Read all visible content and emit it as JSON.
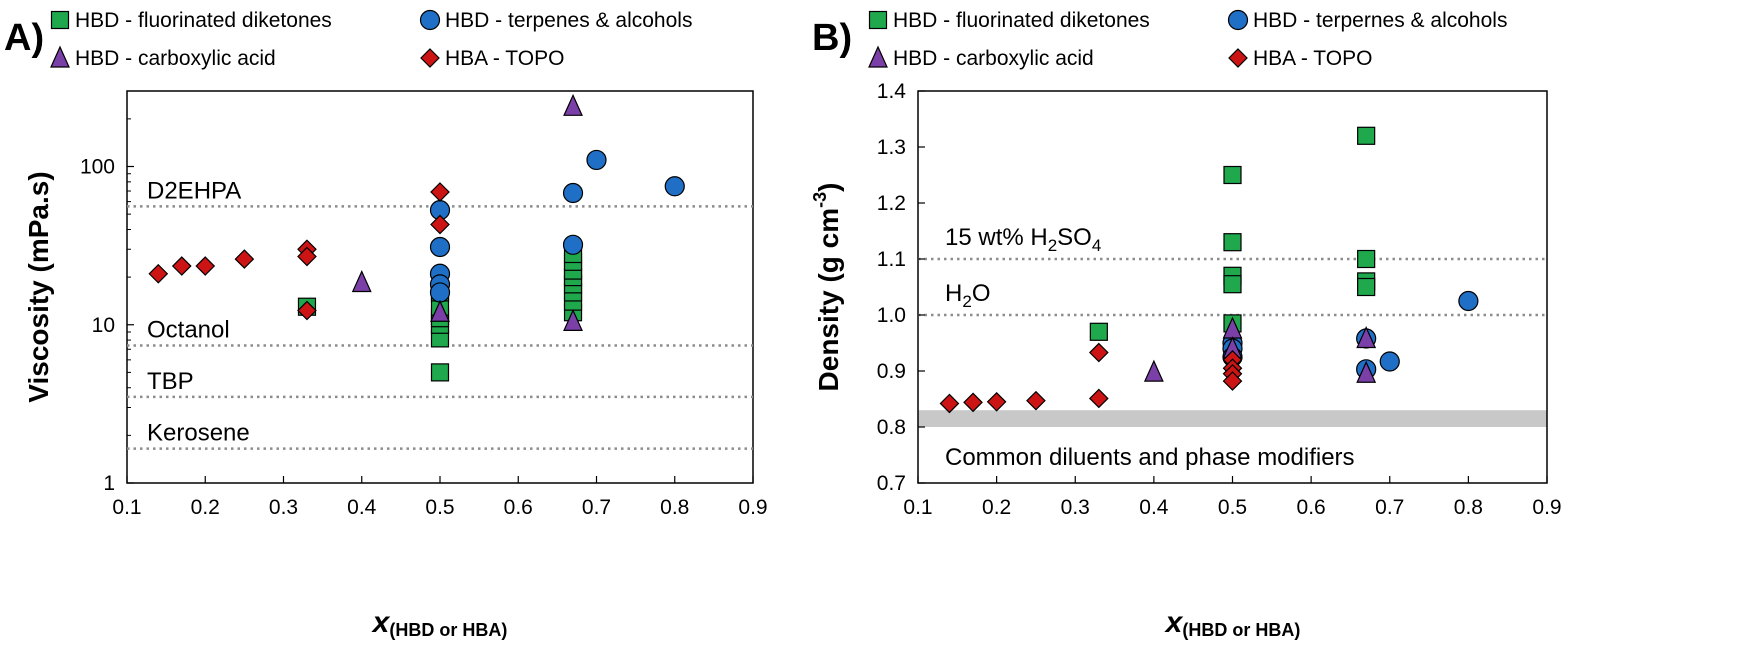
{
  "colors": {
    "fluorinated": "#1fa84c",
    "terpenes": "#1f6fc6",
    "carboxylic": "#7b3fa8",
    "topo": "#cc1414",
    "reference_line": "#8c8c8c",
    "band": "#c8c8c8"
  },
  "chart_data": [
    {
      "type": "scatter",
      "panel_label": "A)",
      "ylabel": "Viscosity (mPa.s)",
      "xlabel": {
        "main": "x",
        "sub": "(HBD or HBA)"
      },
      "xlim": [
        0.1,
        0.9
      ],
      "ylim": [
        1,
        300
      ],
      "yscale": "log",
      "x_ticks": [
        "0.1",
        "0.2",
        "0.3",
        "0.4",
        "0.5",
        "0.6",
        "0.7",
        "0.8",
        "0.9"
      ],
      "y_ticks": [
        "1",
        "10",
        "100"
      ],
      "y_tick_values": [
        1,
        10,
        100
      ],
      "legend": [
        {
          "label": "HBD - fluorinated diketones",
          "marker": "square",
          "series": "fluorinated"
        },
        {
          "label": "HBD - terpenes & alcohols",
          "marker": "circle",
          "series": "terpenes"
        },
        {
          "label": "HBD - carboxylic acid",
          "marker": "triangle",
          "series": "carboxylic"
        },
        {
          "label": "HBA - TOPO",
          "marker": "diamond",
          "series": "topo"
        }
      ],
      "reference_lines": [
        {
          "label": "D2EHPA",
          "value": 56
        },
        {
          "label": "Octanol",
          "value": 7.4
        },
        {
          "label": "TBP",
          "value": 3.5
        },
        {
          "label": "Kerosene",
          "value": 1.65
        }
      ],
      "series": [
        {
          "name": "HBD - fluorinated diketones",
          "key": "fluorinated",
          "marker": "square",
          "x": [
            0.33,
            0.5,
            0.5,
            0.5,
            0.5,
            0.5,
            0.5,
            0.67,
            0.67,
            0.67,
            0.67,
            0.67,
            0.67,
            0.67,
            0.67
          ],
          "y": [
            13,
            5,
            8.2,
            10,
            11,
            13,
            16,
            12,
            14,
            16,
            18,
            20,
            22,
            25,
            28
          ]
        },
        {
          "name": "HBD - terpenes & alcohols",
          "key": "terpenes",
          "marker": "circle",
          "x": [
            0.5,
            0.5,
            0.5,
            0.5,
            0.5,
            0.67,
            0.67,
            0.7,
            0.8
          ],
          "y": [
            53,
            31,
            21,
            18,
            16,
            68,
            32,
            110,
            75
          ]
        },
        {
          "name": "HBD - carboxylic acid",
          "key": "carboxylic",
          "marker": "triangle",
          "x": [
            0.4,
            0.5,
            0.67,
            0.67
          ],
          "y": [
            18.5,
            12,
            240,
            10.5
          ]
        },
        {
          "name": "HBA - TOPO",
          "key": "topo",
          "marker": "diamond",
          "x": [
            0.14,
            0.17,
            0.2,
            0.25,
            0.33,
            0.33,
            0.33,
            0.5,
            0.5
          ],
          "y": [
            21,
            23.5,
            23.5,
            26,
            30,
            27,
            12.3,
            69,
            43
          ]
        }
      ]
    },
    {
      "type": "scatter",
      "panel_label": "B)",
      "ylabel": "Density (g cm",
      "ylabel_sup": "-3",
      "ylabel_end": ")",
      "xlabel": {
        "main": "x",
        "sub": "(HBD or HBA)"
      },
      "xlim": [
        0.1,
        0.9
      ],
      "ylim": [
        0.7,
        1.4
      ],
      "yscale": "linear",
      "x_ticks": [
        "0.1",
        "0.2",
        "0.3",
        "0.4",
        "0.5",
        "0.6",
        "0.7",
        "0.8",
        "0.9"
      ],
      "y_ticks": [
        "0.7",
        "0.8",
        "0.9",
        "1.0",
        "1.1",
        "1.2",
        "1.3",
        "1.4"
      ],
      "y_tick_values": [
        0.7,
        0.8,
        0.9,
        1.0,
        1.1,
        1.2,
        1.3,
        1.4
      ],
      "legend": [
        {
          "label": "HBD - fluorinated diketones",
          "marker": "square",
          "series": "fluorinated"
        },
        {
          "label": "HBD - terpernes & alcohols",
          "marker": "circle",
          "series": "terpenes"
        },
        {
          "label": "HBD - carboxylic acid",
          "marker": "triangle",
          "series": "carboxylic"
        },
        {
          "label": "HBA - TOPO",
          "marker": "diamond",
          "series": "topo"
        }
      ],
      "reference_lines": [
        {
          "label": "15 wt% H",
          "label_sub": "2",
          "label_end": "SO",
          "label_sub2": "4",
          "value": 1.1
        },
        {
          "label": "H",
          "label_sub": "2",
          "label_end": "O",
          "label_sub2": "",
          "value": 1.0
        }
      ],
      "band": {
        "label": "Common diluents and phase modifiers",
        "from": 0.8,
        "to": 0.83
      },
      "series": [
        {
          "name": "HBD - fluorinated diketones",
          "key": "fluorinated",
          "marker": "square",
          "x": [
            0.33,
            0.5,
            0.5,
            0.5,
            0.5,
            0.5,
            0.67,
            0.67,
            0.67,
            0.67
          ],
          "y": [
            0.97,
            1.25,
            1.13,
            1.07,
            1.055,
            0.985,
            1.32,
            1.1,
            1.06,
            1.05
          ]
        },
        {
          "name": "HBD - terpernes & alcohols",
          "key": "terpenes",
          "marker": "circle",
          "x": [
            0.5,
            0.5,
            0.5,
            0.67,
            0.67,
            0.7,
            0.8
          ],
          "y": [
            0.95,
            0.94,
            0.925,
            0.958,
            0.903,
            0.917,
            1.025
          ]
        },
        {
          "name": "HBD - carboxylic acid",
          "key": "carboxylic",
          "marker": "triangle",
          "x": [
            0.4,
            0.5,
            0.5,
            0.67,
            0.67
          ],
          "y": [
            0.898,
            0.975,
            0.94,
            0.958,
            0.896
          ]
        },
        {
          "name": "HBA - TOPO",
          "key": "topo",
          "marker": "diamond",
          "x": [
            0.14,
            0.17,
            0.2,
            0.25,
            0.33,
            0.33,
            0.5,
            0.5,
            0.5,
            0.5
          ],
          "y": [
            0.842,
            0.844,
            0.845,
            0.847,
            0.933,
            0.851,
            0.92,
            0.905,
            0.895,
            0.882
          ]
        }
      ]
    }
  ]
}
